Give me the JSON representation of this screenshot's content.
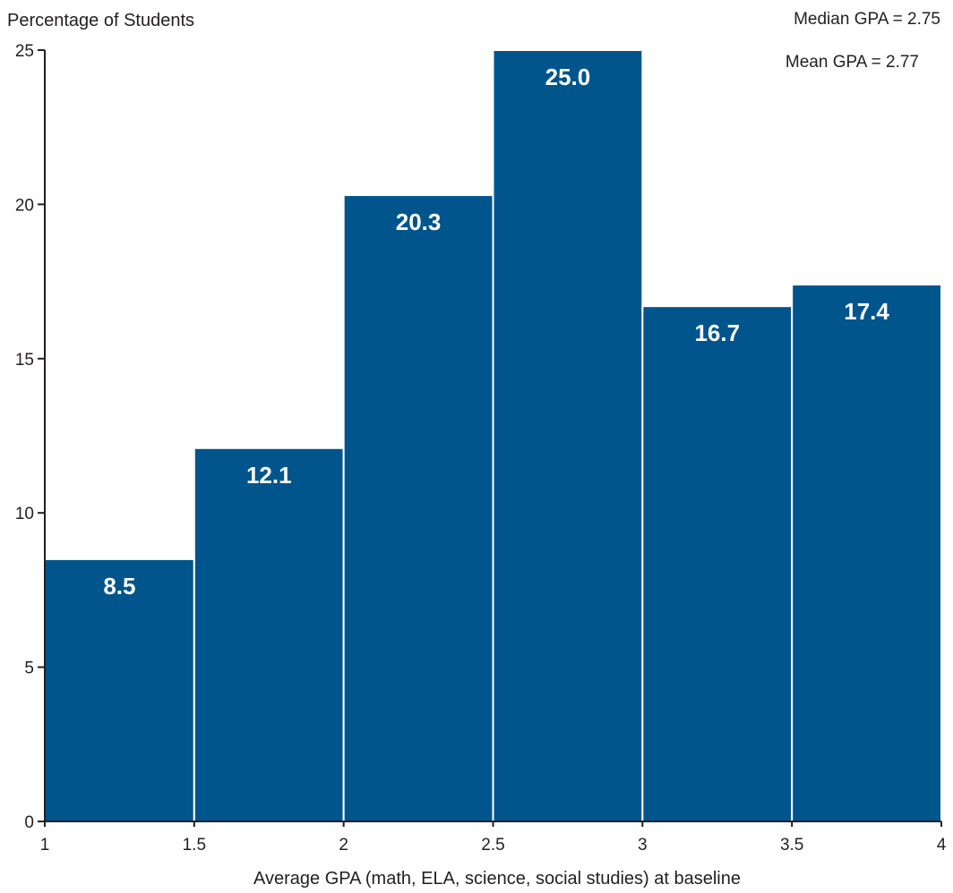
{
  "chart_data": {
    "type": "bar",
    "title": "",
    "xlabel": "Average GPA (math, ELA, science, social studies) at baseline",
    "ylabel": "Percentage of Students",
    "bins": [
      [
        1,
        1.5
      ],
      [
        1.5,
        2
      ],
      [
        2,
        2.5
      ],
      [
        2.5,
        3
      ],
      [
        3,
        3.5
      ],
      [
        3.5,
        4
      ]
    ],
    "values": [
      8.5,
      12.1,
      20.3,
      25.0,
      16.7,
      17.4
    ],
    "data_labels": [
      "8.5",
      "12.1",
      "20.3",
      "25.0",
      "16.7",
      "17.4"
    ],
    "xlim": [
      1,
      4
    ],
    "ylim": [
      0,
      25
    ],
    "xticks": [
      1,
      1.5,
      2,
      2.5,
      3,
      3.5,
      4
    ],
    "xtick_labels": [
      "1",
      "1.5",
      "2",
      "2.5",
      "3",
      "3.5",
      "4"
    ],
    "yticks": [
      0,
      5,
      10,
      15,
      20,
      25
    ],
    "ytick_labels": [
      "0",
      "5",
      "10",
      "15",
      "20",
      "25"
    ],
    "annotations": [
      "Median GPA = 2.75",
      "Mean GPA = 2.77"
    ],
    "grid": false,
    "legend": "none",
    "bar_color": "#00558c",
    "bar_edge_color": "#ffffff",
    "label_color": "#ffffff",
    "axis_color": "#231f20"
  }
}
